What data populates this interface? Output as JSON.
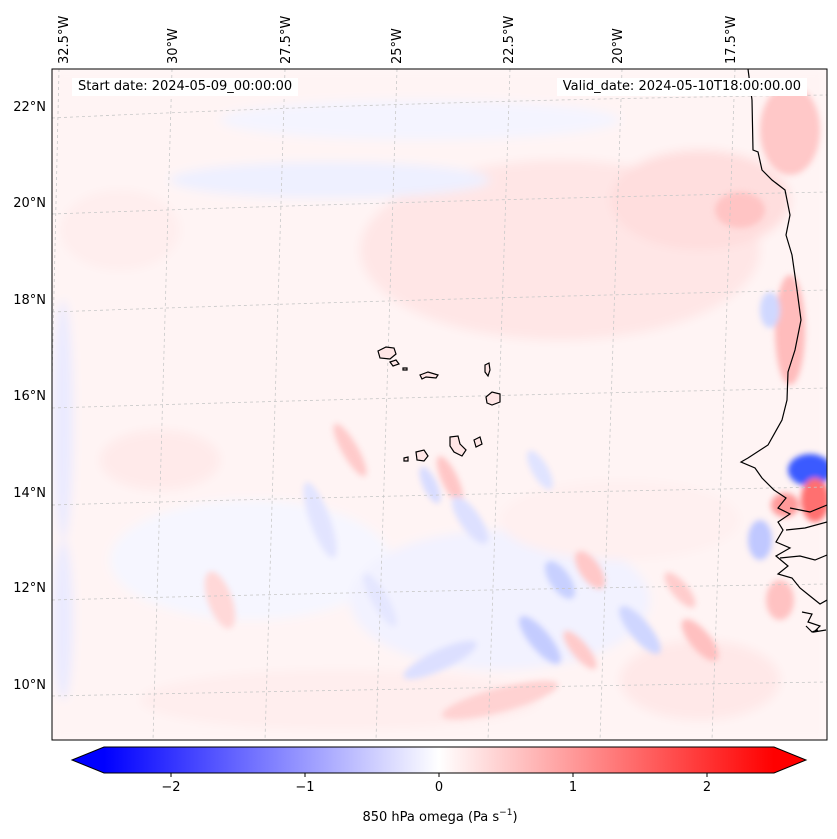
{
  "map": {
    "variable_label": "850 hPa omega (Pa s",
    "variable_unit_sup": "−1",
    "variable_label_close": ")",
    "start_date": "Start date: 2024-05-09_00:00:00",
    "valid_date": "Valid_date: 2024-05-10T18:00:00.00",
    "lon_ticks": [
      "32.5°W",
      "30°W",
      "27.5°W",
      "25°W",
      "22.5°W",
      "20°W",
      "17.5°W"
    ],
    "lat_ticks": [
      "22°N",
      "20°N",
      "18°N",
      "16°N",
      "14°N",
      "12°N",
      "10°N"
    ],
    "colormap": "bwr",
    "colors": {
      "negative": "#0000ff",
      "zero": "#ffffff",
      "positive": "#ff0000",
      "coast": "#000000",
      "grid": "#bfbfbf"
    }
  },
  "colorbar": {
    "tick_labels": [
      "−2",
      "−1",
      "0",
      "1",
      "2"
    ],
    "tick_values": [
      -2,
      -1,
      0,
      1,
      2
    ],
    "range": [
      -2.5,
      2.5
    ],
    "extend": "both"
  }
}
